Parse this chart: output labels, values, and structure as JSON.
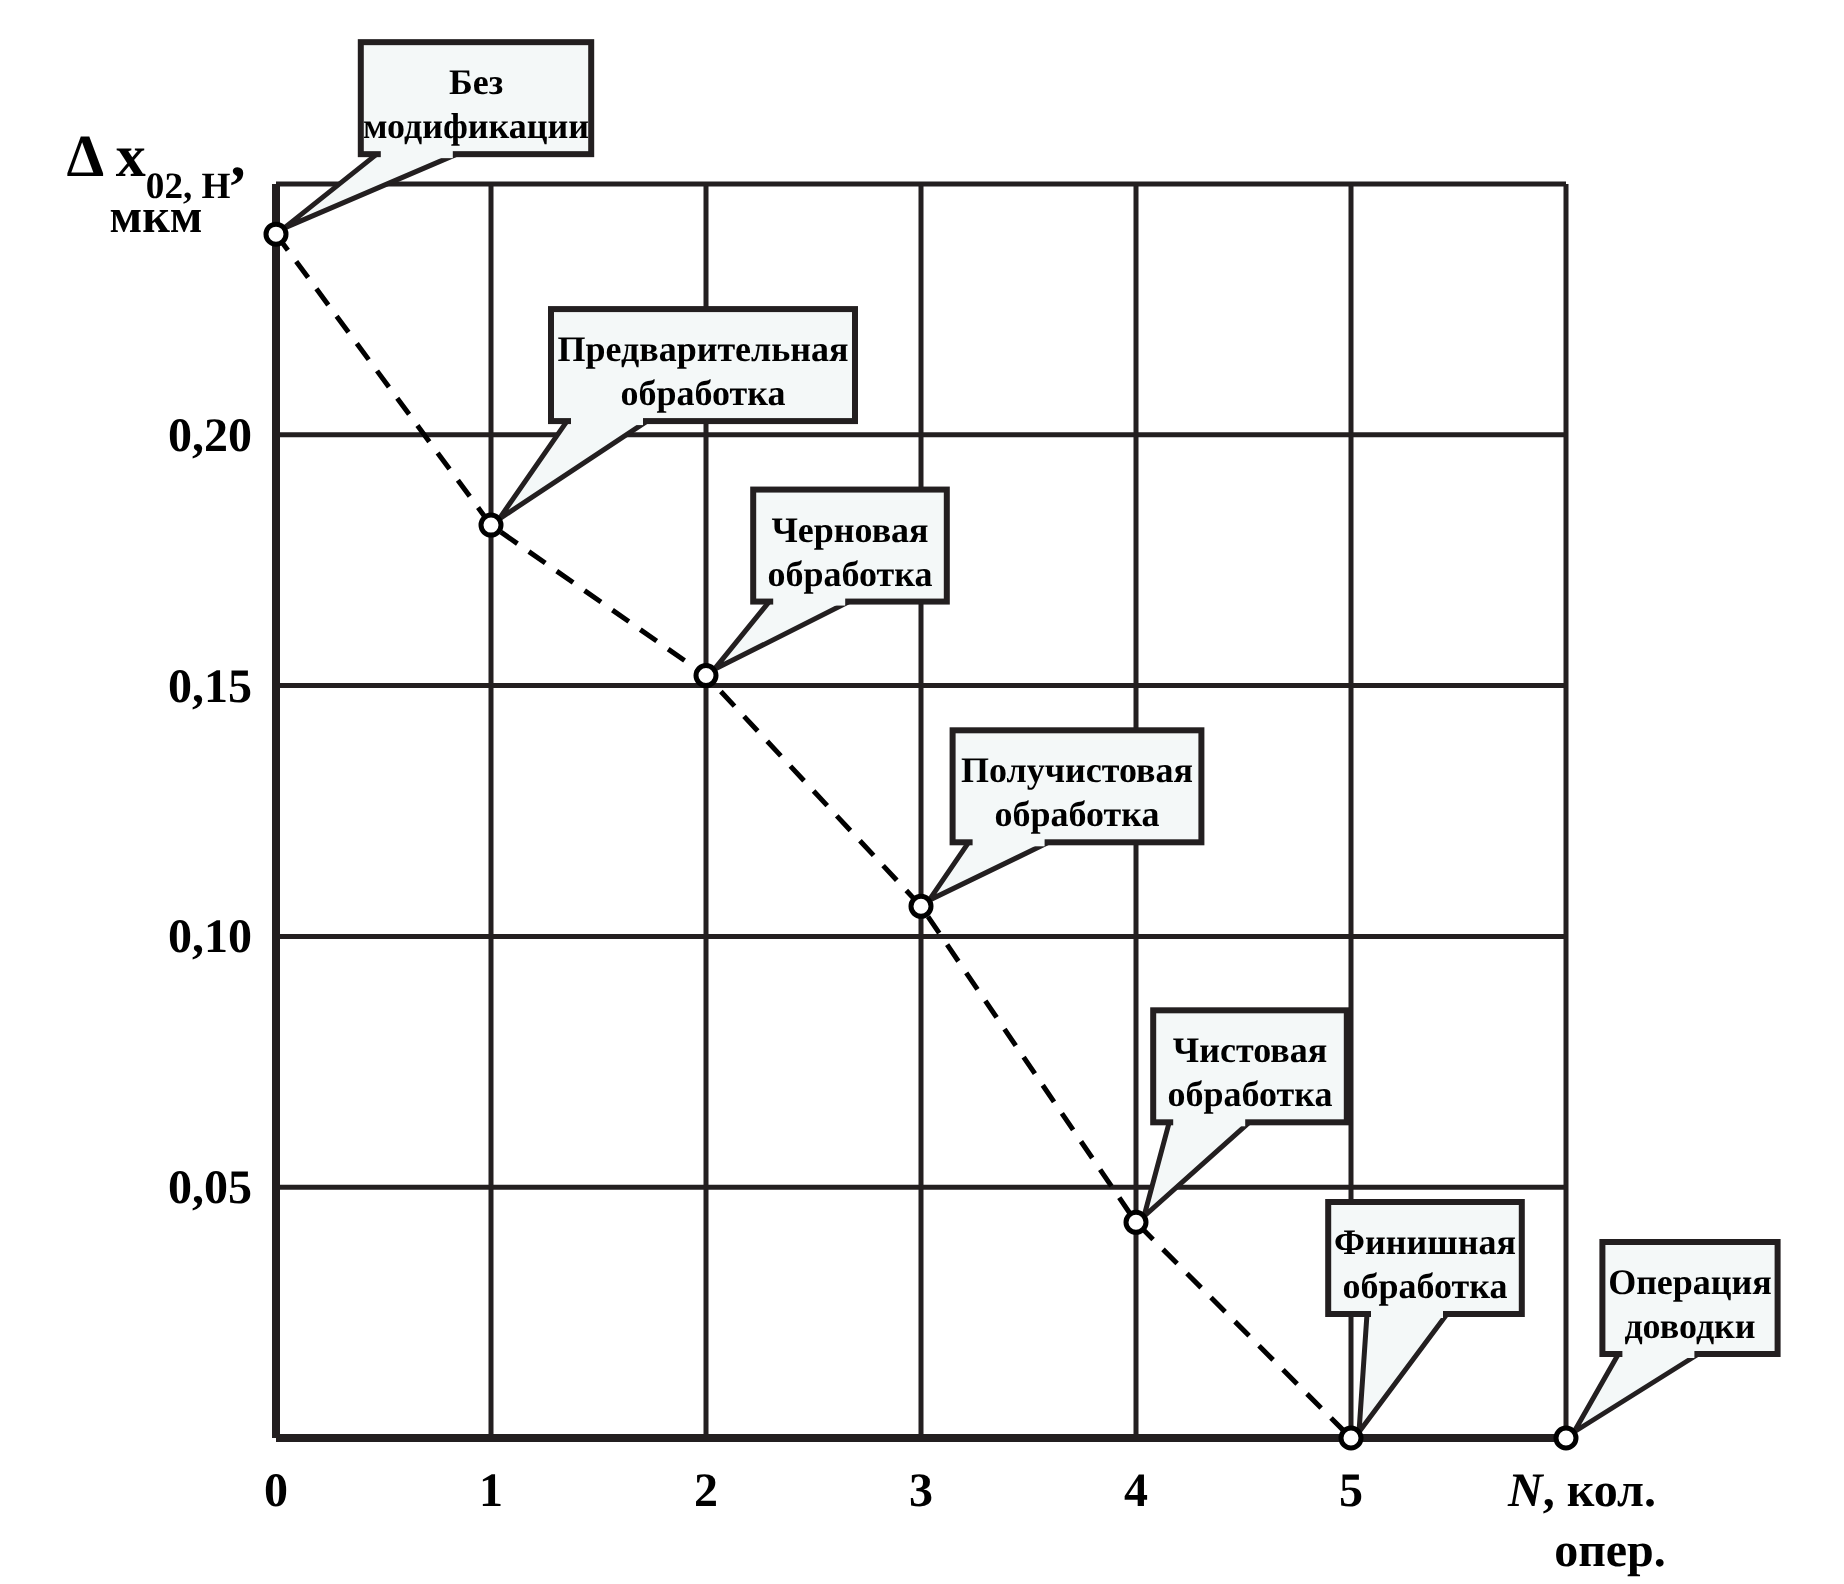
{
  "chart_data": {
    "type": "line",
    "ylabel": "Δ x$_{02, H}$,\nмкм",
    "xlabel": "N, кол.\nопер.",
    "xlim": [
      0,
      6
    ],
    "ylim": [
      0,
      0.25
    ],
    "xticks": [
      0,
      1,
      2,
      3,
      4,
      5,
      {
        "value": 6,
        "label": null
      }
    ],
    "yticks": [
      {
        "value": 0,
        "label": null
      },
      {
        "value": 0.05,
        "label": "0,05"
      },
      {
        "value": 0.1,
        "label": "0,10"
      },
      {
        "value": 0.15,
        "label": "0,15"
      },
      {
        "value": 0.2,
        "label": "0,20"
      },
      {
        "value": 0.25,
        "label": null
      }
    ],
    "grid": true,
    "marker": "circle",
    "series": [
      {
        "color": "#000000",
        "line_style": "dashed",
        "x": [
          0,
          1,
          2,
          3,
          4,
          5
        ],
        "values": [
          0.24,
          0.182,
          0.152,
          0.106,
          0.043,
          0
        ]
      },
      {
        "type": "scatter",
        "color": "#000000",
        "x": [
          6
        ],
        "values": [
          0
        ]
      }
    ],
    "annotations": [
      "Без\nмодификации",
      "Предварительная\nобработка",
      "Черновая\nобработка",
      "Получистовая\nобработка",
      "Чистовая\nобработка",
      "Финишная\nобработка",
      "Операция\nдоводки"
    ]
  }
}
